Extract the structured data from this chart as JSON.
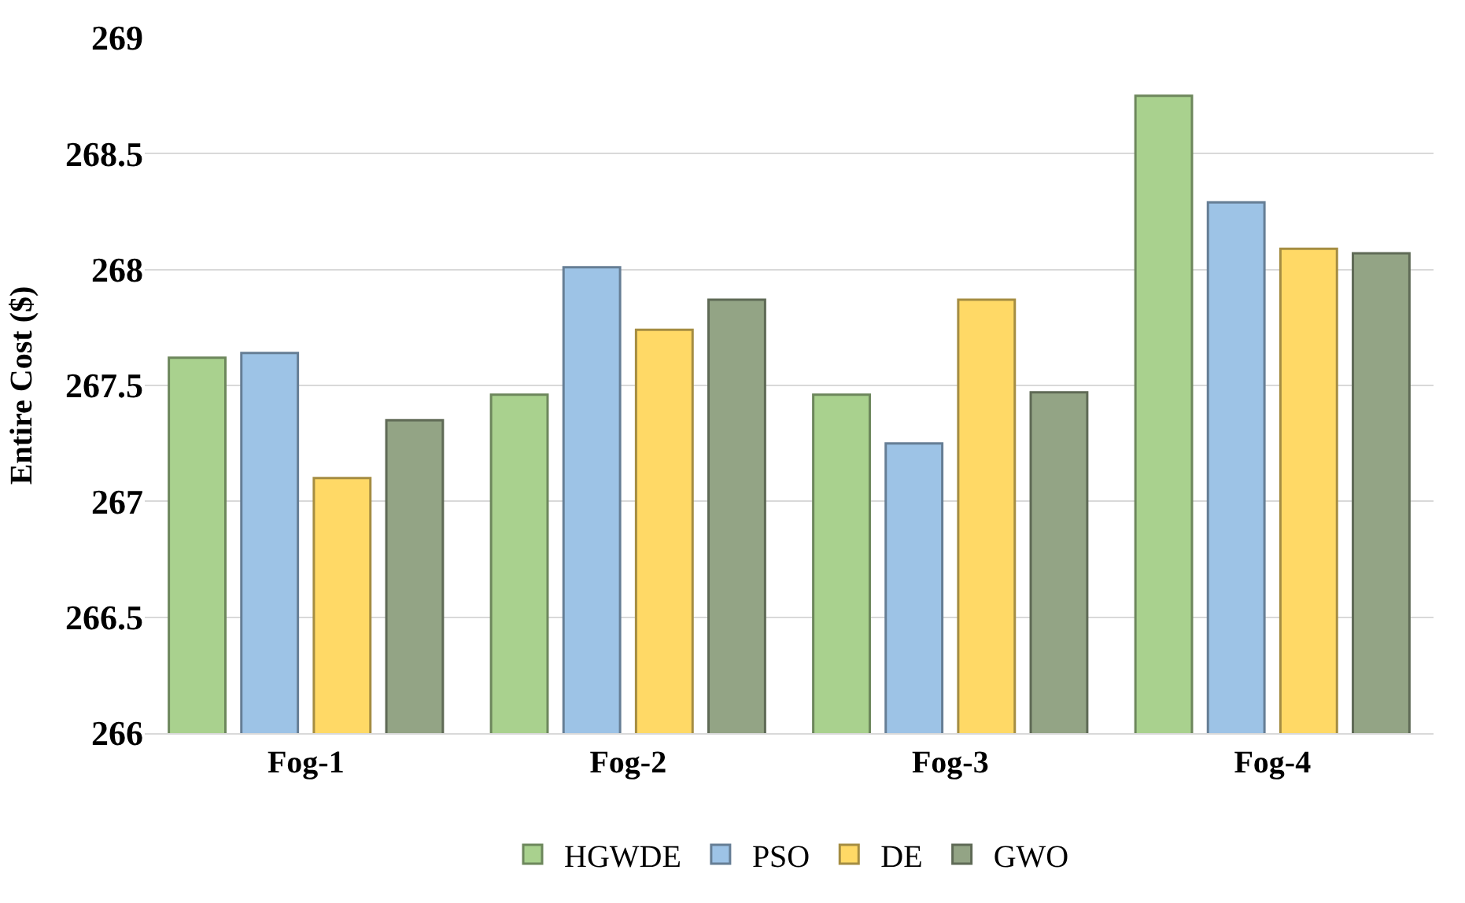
{
  "chart_data": {
    "type": "bar",
    "ylabel": "Entire Cost ($)",
    "categories": [
      "Fog-1",
      "Fog-2",
      "Fog-3",
      "Fog-4"
    ],
    "series": [
      {
        "name": "HGWDE",
        "color": "#a9d18e",
        "values": [
          267.62,
          267.46,
          267.46,
          268.75
        ]
      },
      {
        "name": "PSO",
        "color": "#9dc3e6",
        "values": [
          267.64,
          268.01,
          267.25,
          268.29
        ]
      },
      {
        "name": "DE",
        "color": "#ffd966",
        "values": [
          267.1,
          267.74,
          267.87,
          268.09
        ]
      },
      {
        "name": "GWO",
        "color": "#93a485",
        "values": [
          267.35,
          267.87,
          267.47,
          268.07
        ]
      }
    ],
    "ylim": [
      266,
      269
    ],
    "yticks": [
      266,
      266.5,
      267,
      267.5,
      268,
      268.5,
      269
    ],
    "grid": "y",
    "legend": "bottom"
  }
}
